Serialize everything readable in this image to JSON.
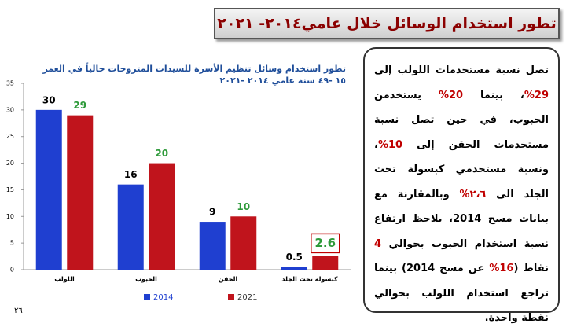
{
  "header": {
    "title": "تطور استخدام الوسائل خلال عامي٢٠١٤- ٢٠٢١"
  },
  "page_number": "٢٦",
  "text": {
    "segments": [
      {
        "text": "تصل نسبة مستخدمات اللولب إلى "
      },
      {
        "text": "29%",
        "color": "#c00000"
      },
      {
        "text": "، بينما "
      },
      {
        "text": "20%",
        "color": "#c00000"
      },
      {
        "text": " يستخدمن الحبوب، في حين تصل نسبة مستخدمات الحقن إلى "
      },
      {
        "text": "10%",
        "color": "#c00000"
      },
      {
        "text": "، ونسبة مستخدمي كبسولة تحت الجلد الى "
      },
      {
        "text": "٢،٦%",
        "color": "#c00000"
      },
      {
        "text": " وبالمقارنة مع بيانات مسح 2014، يلاحظ ارتفاع نسبة استخدام الحبوب بحوالي "
      },
      {
        "text": "4",
        "color": "#c00000"
      },
      {
        "text": " نقاط ("
      },
      {
        "text": "16%",
        "color": "#c00000"
      },
      {
        "text": " عن مسح 2014) بينما تراجع استخدام اللولب بحوالي نقطة واحدة."
      }
    ]
  },
  "chart_data": {
    "type": "bar",
    "title": "تطور استخدام وسائل تنظيم الأسرة للسيدات المتزوجات حالياً في العمر ١٥ -٤٩ سنة عامي ٢٠١٤ -٢٠٢١",
    "categories": [
      "اللولب",
      "الحبوب",
      "الحقن",
      "كبسولة تحت الجلد"
    ],
    "series": [
      {
        "name": "2014",
        "color": "#1f3fd0",
        "label_color": "#000000",
        "values": [
          30,
          16,
          9,
          0.5
        ]
      },
      {
        "name": "2021",
        "color": "#c0141c",
        "label_color": "#2e9a3a",
        "values": [
          29,
          20,
          10,
          2.6
        ],
        "label_boxes": [
          false,
          false,
          false,
          true
        ],
        "label_box_color": "#c00000"
      }
    ],
    "ylim": [
      0,
      35
    ],
    "yticks": [
      0,
      5,
      10,
      15,
      20,
      25,
      30,
      35
    ],
    "grid": false,
    "legend": "bottom"
  }
}
